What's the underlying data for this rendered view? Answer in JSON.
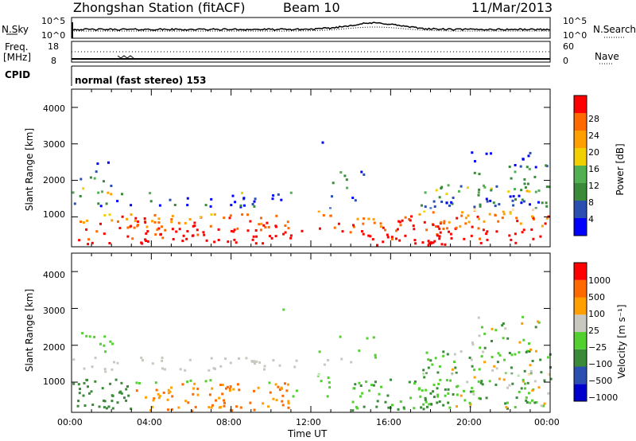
{
  "header": {
    "station": "Zhongshan Station (fitACF)",
    "beam": "Beam 10",
    "date": "11/Mar/2013"
  },
  "top_panel": {
    "left_label": "N.Sky",
    "left_ticks": [
      "10^5",
      "10^0"
    ],
    "right_ticks": [
      "10^5",
      "10^0"
    ],
    "right_label": "N.Search"
  },
  "freq_panel": {
    "left_label_1": "Freq.",
    "left_label_2": "[MHz]",
    "left_ticks": [
      "18",
      "8"
    ],
    "right_ticks": [
      "60",
      "0"
    ],
    "right_label": "Nave"
  },
  "cpid": {
    "label": "CPID",
    "text": "normal (fast stereo) 153"
  },
  "colors": {
    "power_scale": [
      "#0000ff",
      "#2b4fb0",
      "#3a8a3a",
      "#52b052",
      "#f0d000",
      "#ffa000",
      "#ff6a00",
      "#ff0000"
    ],
    "velocity_scale": [
      "#ff0000",
      "#ff6a00",
      "#ffa000",
      "#c8c8c0",
      "#52d030",
      "#3a8a3a",
      "#2b4fb0",
      "#0000cc"
    ]
  },
  "chart_data": [
    {
      "type": "heatmap",
      "panel": "power",
      "ylabel": "Slant Range [km]",
      "ylim": [
        180,
        4500
      ],
      "yticks": [
        "1000",
        "2000",
        "3000",
        "4000"
      ],
      "xlim": [
        0,
        24
      ],
      "xticks": [
        "00:00",
        "04:00",
        "08:00",
        "12:00",
        "16:00",
        "20:00",
        "00:00"
      ],
      "colorbar": {
        "label": "Power [dB]",
        "ticks": [
          "4",
          "8",
          "12",
          "16",
          "20",
          "24",
          "28"
        ]
      }
    },
    {
      "type": "heatmap",
      "panel": "velocity",
      "ylabel": "Slant Range [km]",
      "ylim": [
        180,
        4500
      ],
      "yticks": [
        "1000",
        "2000",
        "3000",
        "4000"
      ],
      "xlim": [
        0,
        24
      ],
      "xticks": [
        "00:00",
        "04:00",
        "08:00",
        "12:00",
        "16:00",
        "20:00",
        "00:00"
      ],
      "xlabel": "Time UT",
      "colorbar": {
        "label": "Velocity [m s⁻¹]",
        "ticks": [
          "1000",
          "500",
          "100",
          "25",
          "−25",
          "−100",
          "−500",
          "−1000"
        ]
      }
    }
  ]
}
